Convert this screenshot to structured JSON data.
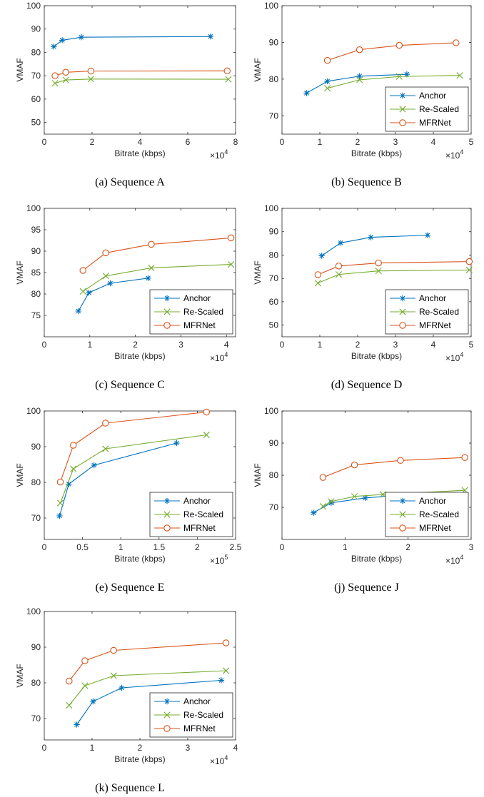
{
  "series_colors": {
    "Anchor": "#0072BD",
    "Re-Scaled": "#77AC30",
    "MFRNet": "#D95319"
  },
  "series_markers": {
    "Anchor": "asterisk",
    "Re-Scaled": "x",
    "MFRNet": "circle"
  },
  "chart_data": [
    {
      "type": "line",
      "caption": "(a) Sequence A",
      "xlabel": "Bitrate (kbps)",
      "ylabel": "VMAF",
      "x_multiplier": "×10",
      "x_exponent": "4",
      "xlim": [
        0,
        8
      ],
      "ylim": [
        45,
        100
      ],
      "xticks": [
        "0",
        "2",
        "4",
        "6",
        "8"
      ],
      "yticks": [
        "50",
        "60",
        "70",
        "80",
        "90",
        "100"
      ],
      "legend_position": "none",
      "series": [
        {
          "name": "Anchor",
          "x": [
            0.4,
            0.75,
            1.55,
            6.95
          ],
          "y": [
            82.5,
            85.2,
            86.5,
            86.8
          ]
        },
        {
          "name": "Re-Scaled",
          "x": [
            0.45,
            0.9,
            1.95,
            7.7
          ],
          "y": [
            66.8,
            68.2,
            68.6,
            68.5
          ]
        },
        {
          "name": "MFRNet",
          "x": [
            0.45,
            0.9,
            1.95,
            7.65
          ],
          "y": [
            70.0,
            71.5,
            72.0,
            72.1
          ]
        }
      ]
    },
    {
      "type": "line",
      "caption": "(b) Sequence B",
      "xlabel": "Bitrate (kbps)",
      "ylabel": "VMAF",
      "x_multiplier": "×10",
      "x_exponent": "4",
      "xlim": [
        0,
        5
      ],
      "ylim": [
        65,
        100
      ],
      "xticks": [
        "0",
        "1",
        "2",
        "3",
        "4",
        "5"
      ],
      "yticks": [
        "70",
        "80",
        "90",
        "100"
      ],
      "legend_position": "bottom-right",
      "series": [
        {
          "name": "Anchor",
          "x": [
            0.65,
            1.2,
            2.05,
            3.3
          ],
          "y": [
            76.2,
            79.4,
            80.8,
            81.3
          ]
        },
        {
          "name": "Re-Scaled",
          "x": [
            1.2,
            2.05,
            3.1,
            4.7
          ],
          "y": [
            77.5,
            79.8,
            80.7,
            81.0
          ]
        },
        {
          "name": "MFRNet",
          "x": [
            1.2,
            2.05,
            3.1,
            4.6
          ],
          "y": [
            85.1,
            88.0,
            89.2,
            89.9
          ]
        }
      ]
    },
    {
      "type": "line",
      "caption": "(c) Sequence C",
      "xlabel": "Bitrate (kbps)",
      "ylabel": "VMAF",
      "x_multiplier": "×10",
      "x_exponent": "4",
      "xlim": [
        0,
        4.2
      ],
      "ylim": [
        70,
        100
      ],
      "xticks": [
        "0",
        "1",
        "2",
        "3",
        "4"
      ],
      "yticks": [
        "75",
        "80",
        "85",
        "90",
        "95",
        "100"
      ],
      "legend_position": "bottom-right",
      "series": [
        {
          "name": "Anchor",
          "x": [
            0.75,
            0.98,
            1.45,
            2.28
          ],
          "y": [
            76.0,
            80.3,
            82.5,
            83.7
          ]
        },
        {
          "name": "Re-Scaled",
          "x": [
            0.85,
            1.35,
            2.35,
            4.1
          ],
          "y": [
            80.6,
            84.2,
            86.1,
            86.9
          ]
        },
        {
          "name": "MFRNet",
          "x": [
            0.85,
            1.35,
            2.35,
            4.1
          ],
          "y": [
            85.5,
            89.6,
            91.6,
            93.1
          ]
        }
      ]
    },
    {
      "type": "line",
      "caption": "(d) Sequence D",
      "xlabel": "Bitrate (kbps)",
      "ylabel": "VMAF",
      "x_multiplier": "×10",
      "x_exponent": "4",
      "xlim": [
        0,
        5
      ],
      "ylim": [
        45,
        100
      ],
      "xticks": [
        "0",
        "1",
        "2",
        "3",
        "4",
        "5"
      ],
      "yticks": [
        "50",
        "60",
        "70",
        "80",
        "90",
        "100"
      ],
      "legend_position": "bottom-right",
      "series": [
        {
          "name": "Anchor",
          "x": [
            1.05,
            1.55,
            2.35,
            3.85
          ],
          "y": [
            79.7,
            85.2,
            87.6,
            88.5
          ]
        },
        {
          "name": "Re-Scaled",
          "x": [
            0.95,
            1.5,
            2.55,
            4.95
          ],
          "y": [
            68.0,
            71.7,
            73.2,
            73.6
          ]
        },
        {
          "name": "MFRNet",
          "x": [
            0.95,
            1.5,
            2.55,
            4.95
          ],
          "y": [
            71.6,
            75.3,
            76.6,
            77.2
          ]
        }
      ]
    },
    {
      "type": "line",
      "caption": "(e) Sequence E",
      "xlabel": "Bitrate (kbps)",
      "ylabel": "VMAF",
      "x_multiplier": "×10",
      "x_exponent": "5",
      "xlim": [
        0,
        2.5
      ],
      "ylim": [
        64,
        100
      ],
      "xticks": [
        "0",
        "0.5",
        "1",
        "1.5",
        "2",
        "2.5"
      ],
      "yticks": [
        "70",
        "80",
        "90",
        "100"
      ],
      "legend_position": "bottom-right",
      "series": [
        {
          "name": "Anchor",
          "x": [
            0.2,
            0.32,
            0.65,
            1.73
          ],
          "y": [
            70.6,
            79.5,
            84.8,
            91.0
          ]
        },
        {
          "name": "Re-Scaled",
          "x": [
            0.21,
            0.38,
            0.8,
            2.12
          ],
          "y": [
            74.2,
            83.8,
            89.4,
            93.3
          ]
        },
        {
          "name": "MFRNet",
          "x": [
            0.21,
            0.38,
            0.8,
            2.12
          ],
          "y": [
            80.1,
            90.4,
            96.6,
            99.7
          ]
        }
      ]
    },
    {
      "type": "line",
      "caption": "(j) Sequence J",
      "xlabel": "Bitrate (kbps)",
      "ylabel": "VMAF",
      "x_multiplier": "×10",
      "x_exponent": "4",
      "xlim": [
        0,
        3
      ],
      "ylim": [
        60,
        100
      ],
      "xticks": [
        "0",
        "1",
        "2",
        "3"
      ],
      "yticks": [
        "70",
        "80",
        "90",
        "100"
      ],
      "legend_position": "bottom-right",
      "series": [
        {
          "name": "Anchor",
          "x": [
            0.5,
            0.78,
            1.32,
            1.75
          ],
          "y": [
            68.3,
            71.4,
            72.9,
            73.6
          ]
        },
        {
          "name": "Re-Scaled",
          "x": [
            0.65,
            0.78,
            1.15,
            1.6,
            2.9
          ],
          "y": [
            70.3,
            71.8,
            73.4,
            74.0,
            75.3
          ]
        },
        {
          "name": "MFRNet",
          "x": [
            0.65,
            1.15,
            1.88,
            2.9
          ],
          "y": [
            79.3,
            83.2,
            84.6,
            85.5
          ]
        }
      ]
    },
    {
      "type": "line",
      "caption": "(k) Sequence L",
      "xlabel": "Bitrate (kbps)",
      "ylabel": "VMAF",
      "x_multiplier": "×10",
      "x_exponent": "4",
      "xlim": [
        0,
        4
      ],
      "ylim": [
        64,
        100
      ],
      "xticks": [
        "0",
        "1",
        "2",
        "3",
        "4"
      ],
      "yticks": [
        "70",
        "80",
        "90",
        "100"
      ],
      "legend_position": "bottom-right",
      "series": [
        {
          "name": "Anchor",
          "x": [
            0.68,
            1.02,
            1.62,
            3.7
          ],
          "y": [
            68.3,
            74.8,
            78.6,
            80.7
          ]
        },
        {
          "name": "Re-Scaled",
          "x": [
            0.52,
            0.85,
            1.45,
            3.8
          ],
          "y": [
            73.7,
            79.2,
            82.0,
            83.4
          ]
        },
        {
          "name": "MFRNet",
          "x": [
            0.52,
            0.85,
            1.45,
            3.8
          ],
          "y": [
            80.5,
            86.2,
            89.1,
            91.2
          ]
        }
      ]
    }
  ]
}
